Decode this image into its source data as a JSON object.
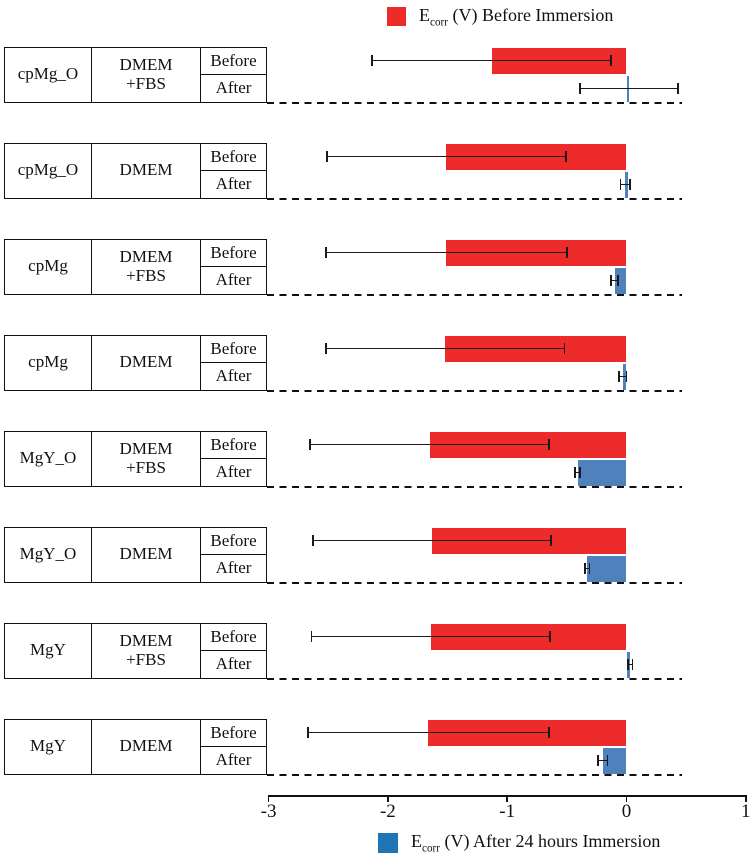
{
  "figure": {
    "legend_top": {
      "symbol": "E",
      "subscript": "corr",
      "rest": " (V) Before Immersion"
    },
    "legend_bottom": {
      "symbol": "E",
      "subscript": "corr",
      "rest": " (V) After 24 hours Immersion"
    },
    "colors": {
      "before_bar": "#ED2B2B",
      "after_bar": "#4F81BD",
      "legend_after_swatch": "#1F74B5",
      "axis": "#111111"
    }
  },
  "chart_data": {
    "type": "bar",
    "orientation": "horizontal",
    "title": "",
    "xlabel": "Ecorr (V)",
    "x_range": [
      -3,
      1
    ],
    "x_ticks": [
      "-3",
      "-2",
      "-1",
      "0",
      "1"
    ],
    "x_tick_values": [
      -3,
      -2,
      -1,
      0,
      1
    ],
    "grid": false,
    "row_labels": {
      "before": "Before",
      "after": "After"
    },
    "series": [
      {
        "name": "Ecorr (V) Before Immersion",
        "color": "#ED2B2B"
      },
      {
        "name": "Ecorr (V) After 24 hours Immersion",
        "color": "#4F81BD"
      }
    ],
    "groups": [
      {
        "sample": "cpMg_O",
        "medium": "DMEM\n+FBS",
        "before": {
          "value": -1.13,
          "error": 1.0
        },
        "after": {
          "value": 0.02,
          "error": 0.41
        }
      },
      {
        "sample": "cpMg_O",
        "medium": "DMEM",
        "before": {
          "value": -1.51,
          "error": 1.0
        },
        "after": {
          "value": -0.01,
          "error": 0.04
        }
      },
      {
        "sample": "cpMg",
        "medium": "DMEM\n+FBS",
        "before": {
          "value": -1.51,
          "error": 1.01
        },
        "after": {
          "value": -0.1,
          "error": 0.03
        }
      },
      {
        "sample": "cpMg",
        "medium": "DMEM",
        "before": {
          "value": -1.52,
          "error": 1.0
        },
        "after": {
          "value": -0.03,
          "error": 0.03
        }
      },
      {
        "sample": "MgY_O",
        "medium": "DMEM\n+FBS",
        "before": {
          "value": -1.65,
          "error": 1.0
        },
        "after": {
          "value": -0.41,
          "error": 0.02
        }
      },
      {
        "sample": "MgY_O",
        "medium": "DMEM",
        "before": {
          "value": -1.63,
          "error": 1.0
        },
        "after": {
          "value": -0.33,
          "error": 0.02
        }
      },
      {
        "sample": "MgY",
        "medium": "DMEM\n+FBS",
        "before": {
          "value": -1.64,
          "error": 1.0
        },
        "after": {
          "value": 0.03,
          "error": 0.02
        }
      },
      {
        "sample": "MgY",
        "medium": "DMEM",
        "before": {
          "value": -1.66,
          "error": 1.01
        },
        "after": {
          "value": -0.2,
          "error": 0.04
        }
      }
    ]
  }
}
